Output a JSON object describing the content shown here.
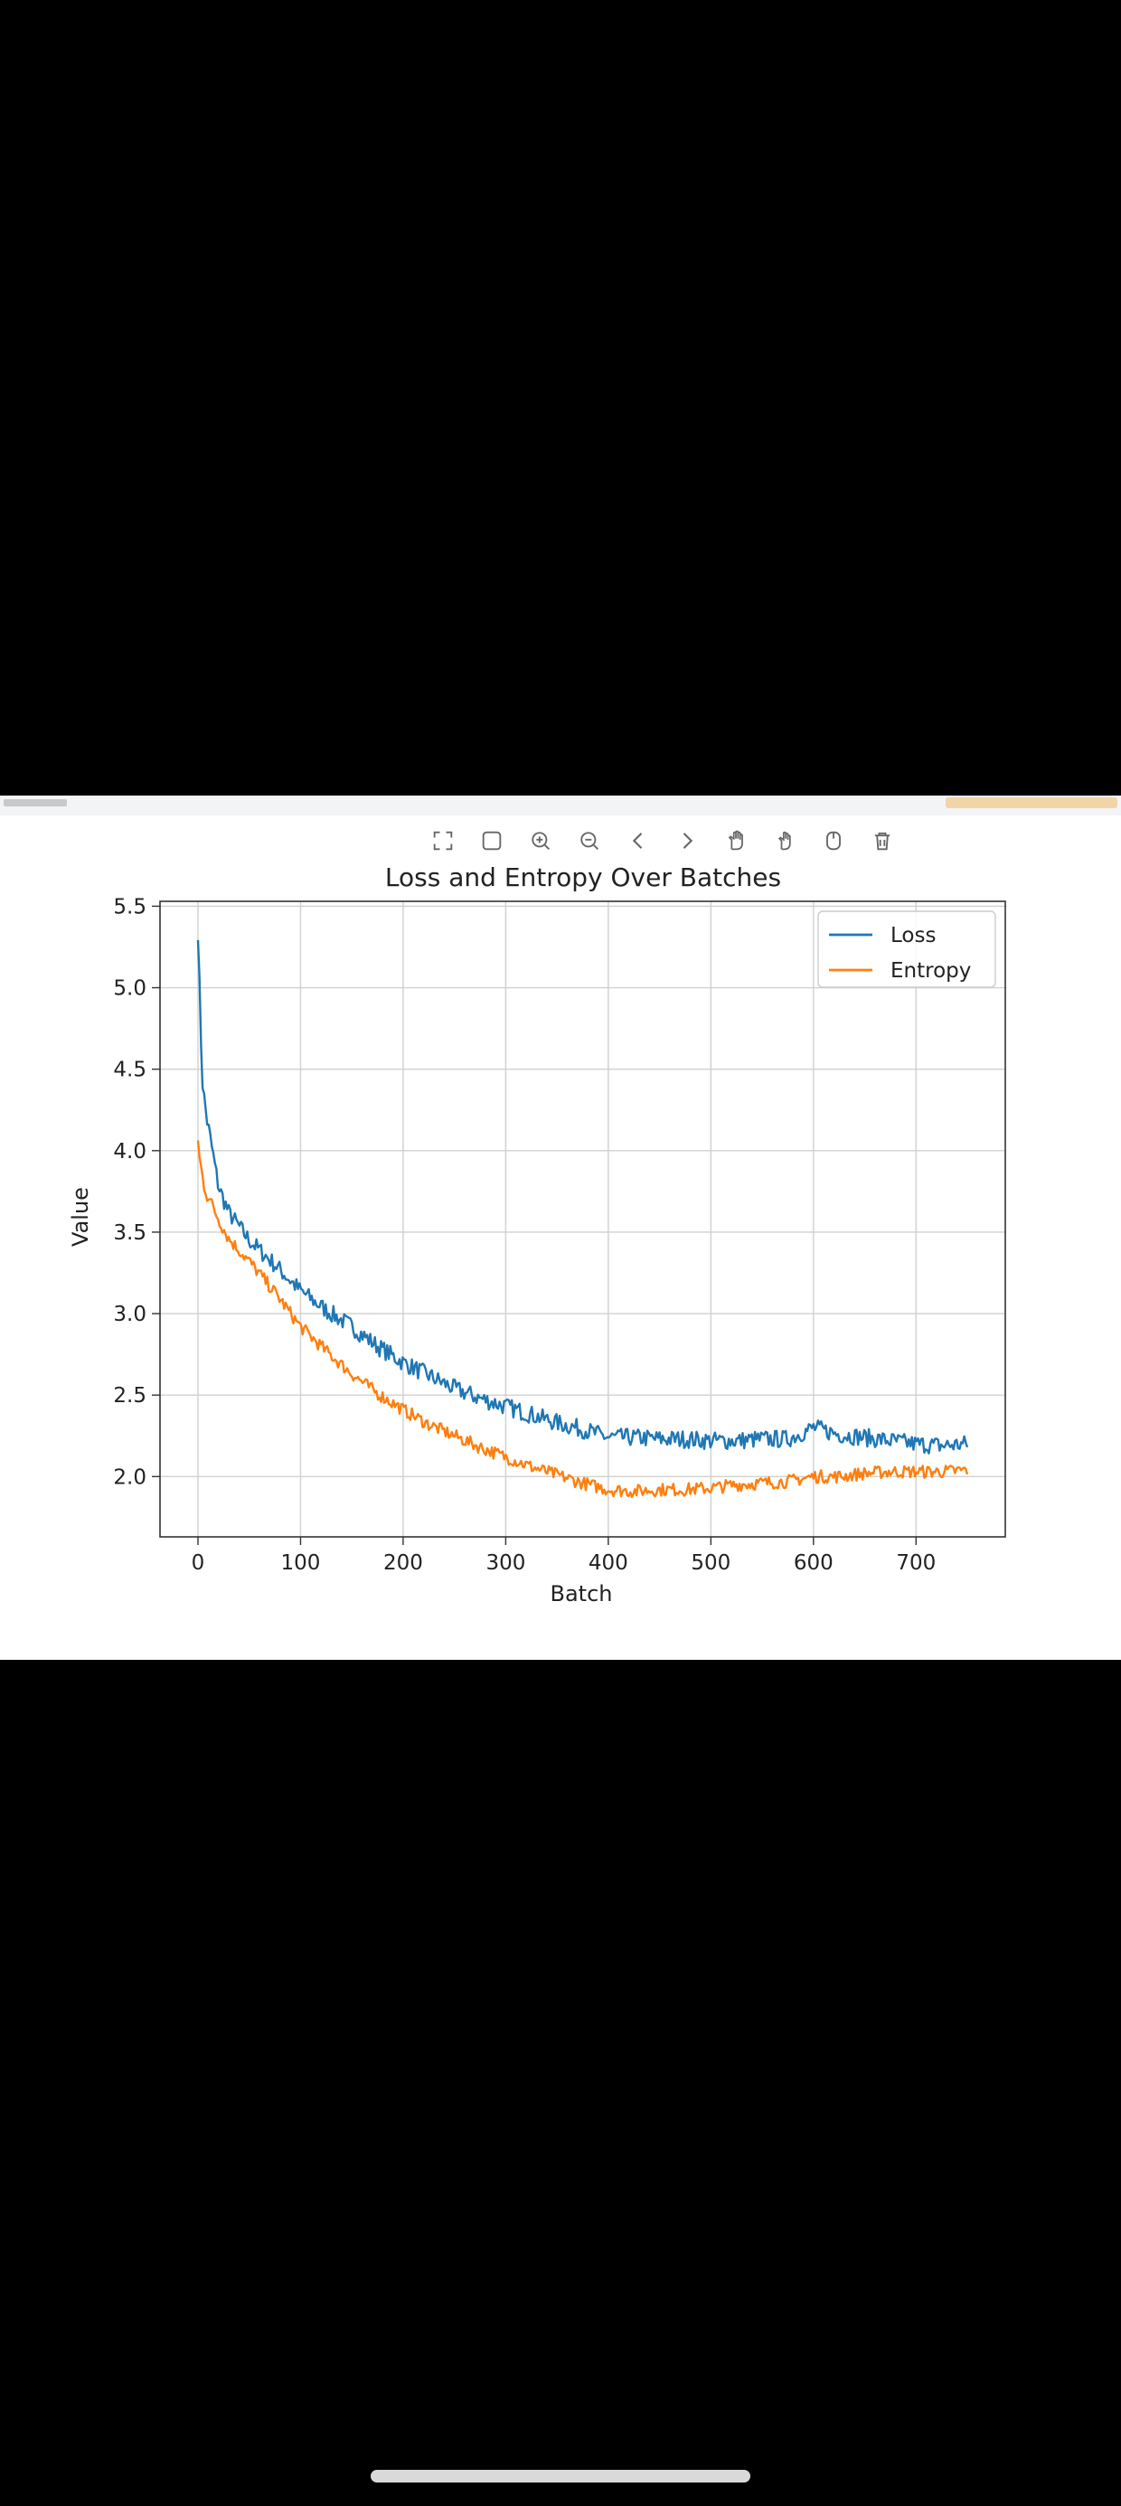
{
  "toolbar": {
    "icons": [
      "fullscreen-icon",
      "square-select-icon",
      "zoom-in-icon",
      "zoom-out-icon",
      "back-arrow-icon",
      "forward-arrow-icon",
      "pan-icon",
      "pan-alt-icon",
      "reset-icon",
      "trash-icon"
    ]
  },
  "colors": {
    "loss": "#1f77b4",
    "entropy": "#ff7f0e",
    "grid": "#d0d0d0"
  },
  "chart_data": {
    "type": "line",
    "title": "Loss and Entropy Over Batches",
    "xlabel": "Batch",
    "ylabel": "Value",
    "xlim": [
      -37,
      787
    ],
    "ylim": [
      1.63,
      5.53
    ],
    "xticks": [
      0,
      100,
      200,
      300,
      400,
      500,
      600,
      700
    ],
    "yticks": [
      2.0,
      2.5,
      3.0,
      3.5,
      4.0,
      4.5,
      5.0,
      5.5
    ],
    "grid": true,
    "legend_position": "top-right",
    "series": [
      {
        "name": "Loss",
        "color": "#1f77b4",
        "x": [
          0,
          2,
          5,
          10,
          20,
          30,
          50,
          75,
          100,
          125,
          150,
          175,
          200,
          225,
          250,
          275,
          300,
          325,
          350,
          375,
          400,
          425,
          450,
          475,
          500,
          525,
          550,
          575,
          600,
          625,
          650,
          675,
          700,
          725,
          750
        ],
        "values": [
          5.38,
          4.85,
          4.35,
          4.15,
          3.78,
          3.62,
          3.45,
          3.3,
          3.14,
          3.02,
          2.92,
          2.8,
          2.7,
          2.62,
          2.54,
          2.48,
          2.43,
          2.38,
          2.33,
          2.29,
          2.24,
          2.24,
          2.23,
          2.23,
          2.22,
          2.22,
          2.23,
          2.23,
          2.3,
          2.26,
          2.24,
          2.22,
          2.2,
          2.19,
          2.2
        ]
      },
      {
        "name": "Entropy",
        "color": "#ff7f0e",
        "x": [
          0,
          2,
          5,
          10,
          20,
          30,
          50,
          75,
          100,
          125,
          150,
          175,
          200,
          225,
          250,
          275,
          300,
          325,
          350,
          375,
          400,
          425,
          450,
          475,
          500,
          525,
          550,
          575,
          600,
          625,
          650,
          675,
          700,
          725,
          750
        ],
        "values": [
          4.05,
          3.92,
          3.82,
          3.72,
          3.58,
          3.46,
          3.32,
          3.13,
          2.92,
          2.77,
          2.63,
          2.51,
          2.41,
          2.32,
          2.25,
          2.18,
          2.12,
          2.06,
          2.01,
          1.96,
          1.92,
          1.91,
          1.92,
          1.92,
          1.93,
          1.95,
          1.96,
          1.97,
          2.0,
          2.0,
          2.02,
          2.03,
          2.03,
          2.03,
          2.04
        ]
      }
    ]
  }
}
